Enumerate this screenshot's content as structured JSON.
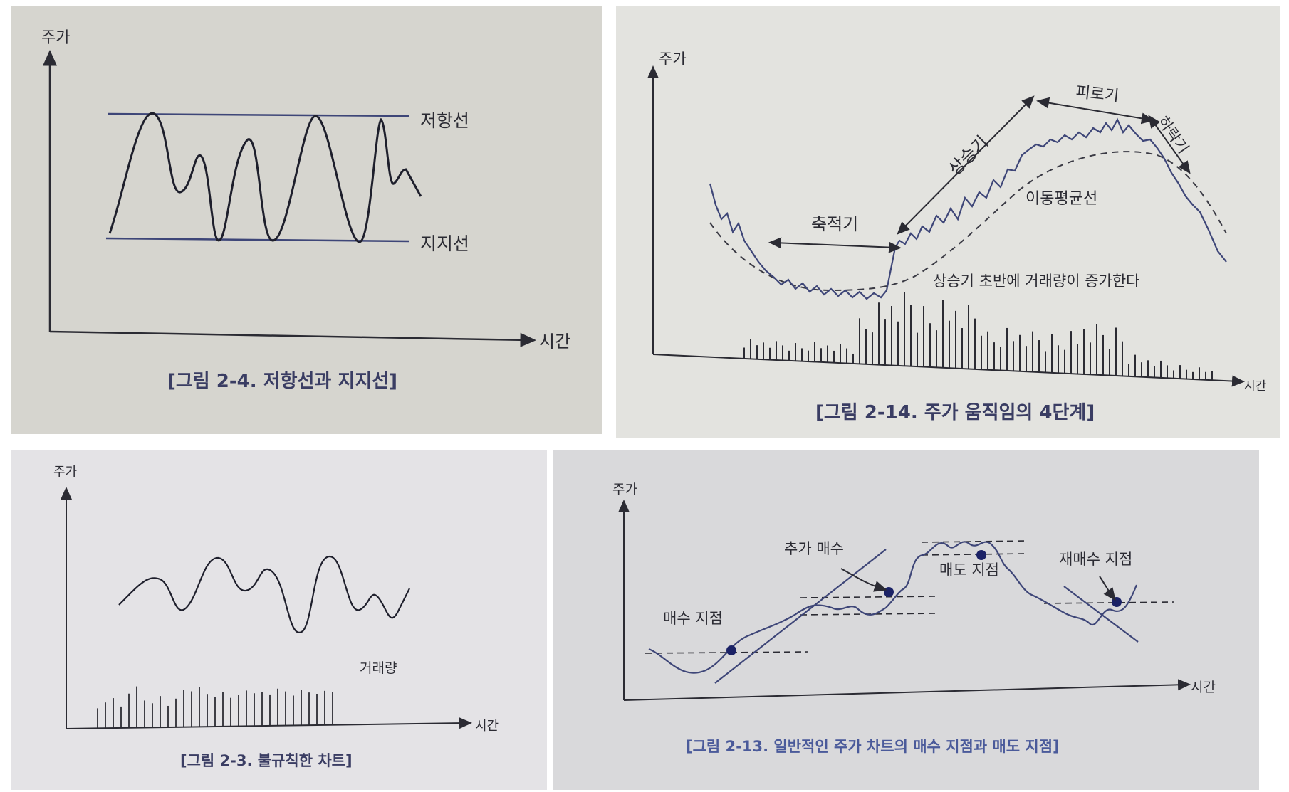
{
  "figures": [
    {
      "id": "fig-2-4",
      "caption": "[그림 2-4. 저항선과 지지선]",
      "y_axis": "주가",
      "x_axis": "시간",
      "resistance_label": "저항선",
      "support_label": "지지선"
    },
    {
      "id": "fig-2-14",
      "caption": "[그림 2-14. 주가 움직임의 4단계]",
      "y_axis": "주가",
      "x_axis": "시간",
      "phases": [
        "축적기",
        "상승기",
        "피로기",
        "하락기"
      ],
      "moving_average_label": "이동평균선",
      "note": "상승기 초반에 거래량이 증가한다"
    },
    {
      "id": "fig-2-3",
      "caption": "[그림 2-3. 불규칙한 차트]",
      "y_axis": "주가",
      "x_axis": "시간",
      "volume_label": "거래량"
    },
    {
      "id": "fig-2-13",
      "caption": "[그림 2-13. 일반적인 주가 차트의 매수 지점과 매도 지점]",
      "y_axis": "주가",
      "x_axis": "시간",
      "annotations": [
        "매수 지점",
        "추가 매수",
        "매도 지점",
        "재매수 지점"
      ]
    }
  ],
  "colors": {
    "line_dark": "#1e1f2c",
    "line_blue": "#3e4678",
    "caption": "#3a3d63",
    "marker": "#1b2266"
  }
}
